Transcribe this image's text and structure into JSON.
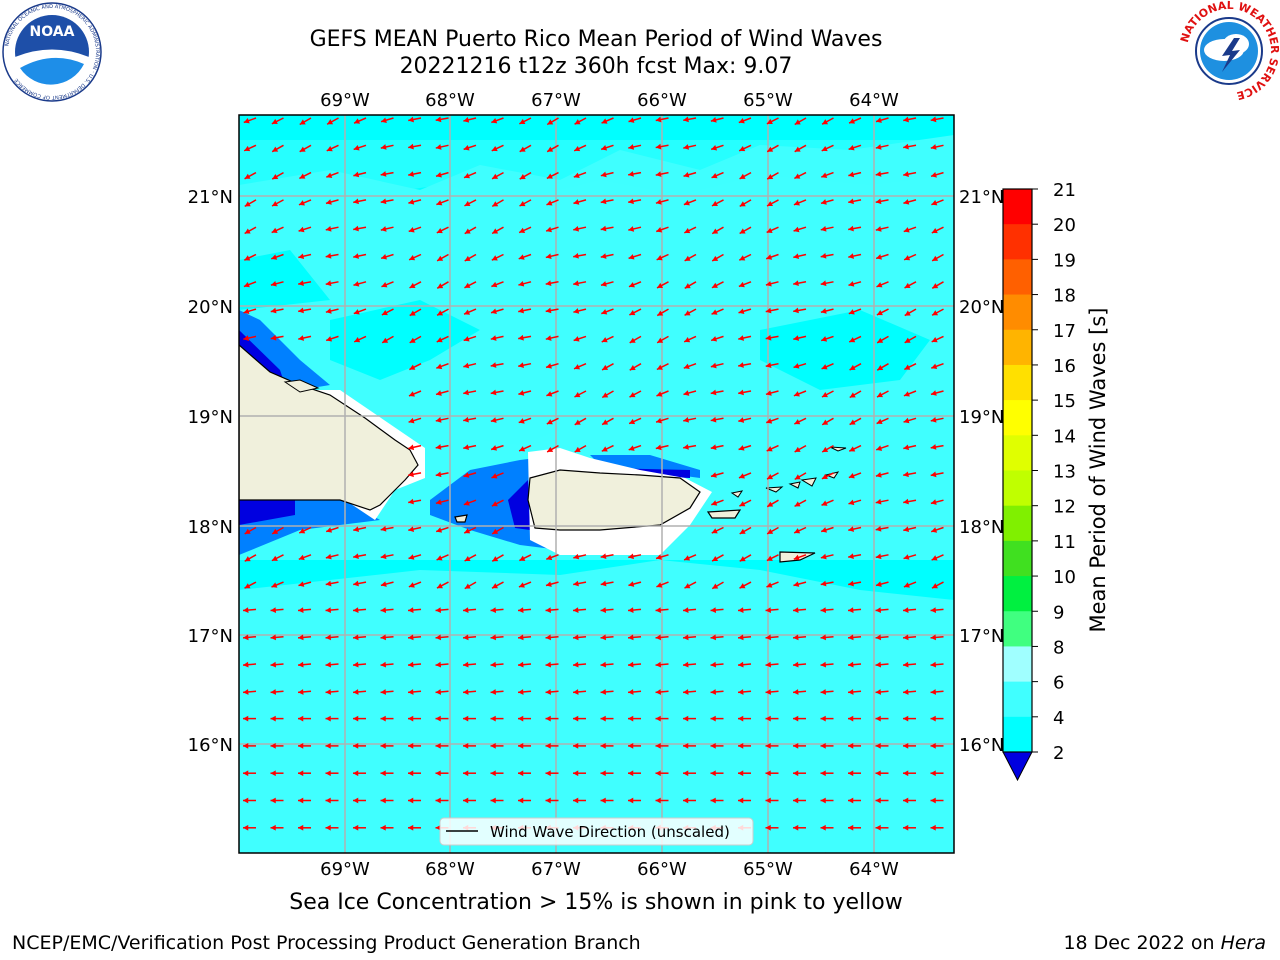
{
  "header": {
    "title_line1": "GEFS MEAN Puerto Rico Mean Period of Wind Waves",
    "title_line2": "20221216 t12z 360h fcst   Max: 9.07"
  },
  "map": {
    "lon_ticks": [
      "69°W",
      "68°W",
      "67°W",
      "66°W",
      "65°W",
      "64°W"
    ],
    "lat_ticks": [
      "21°N",
      "20°N",
      "19°N",
      "18°N",
      "17°N",
      "16°N"
    ],
    "legend_label": "Wind Wave Direction (unscaled)",
    "colors": {
      "ocean_light": "#00ffff",
      "ocean_lighter": "#40ffff",
      "ocean_pale": "#a0ffff",
      "land": "#f0f0dc",
      "blue_mid": "#0080ff",
      "blue_dark": "#0000e0",
      "arrow": "#ff0000",
      "grid": "#b0b0b0"
    }
  },
  "colorbar": {
    "label": "Mean Period of Wind Waves [s]",
    "ticks": [
      "21",
      "20",
      "19",
      "18",
      "17",
      "16",
      "15",
      "14",
      "13",
      "12",
      "11",
      "10",
      "9",
      "8",
      "6",
      "4",
      "2"
    ],
    "colors": [
      "#ff0000",
      "#ff3000",
      "#ff6000",
      "#ff8c00",
      "#ffb400",
      "#ffe000",
      "#ffff00",
      "#e0ff00",
      "#c0ff00",
      "#80f000",
      "#40e020",
      "#00f040",
      "#40ff80",
      "#a0ffff",
      "#40ffff",
      "#00ffff",
      "#0080ff",
      "#0000e0"
    ]
  },
  "note": "Sea Ice Concentration > 15% is shown in pink to yellow",
  "footer": {
    "left": "NCEP/EMC/Verification Post Processing Product Generation Branch",
    "right_prefix": "18 Dec 2022 on ",
    "right_host": "Hera"
  },
  "logos": {
    "noaa_text": "NOAA",
    "noaa_ring_text": "NATIONAL OCEANIC AND ATMOSPHERIC ADMINISTRATION · U.S. DEPARTMENT OF COMMERCE",
    "nws_ring_text": "NATIONAL WEATHER SERVICE"
  }
}
